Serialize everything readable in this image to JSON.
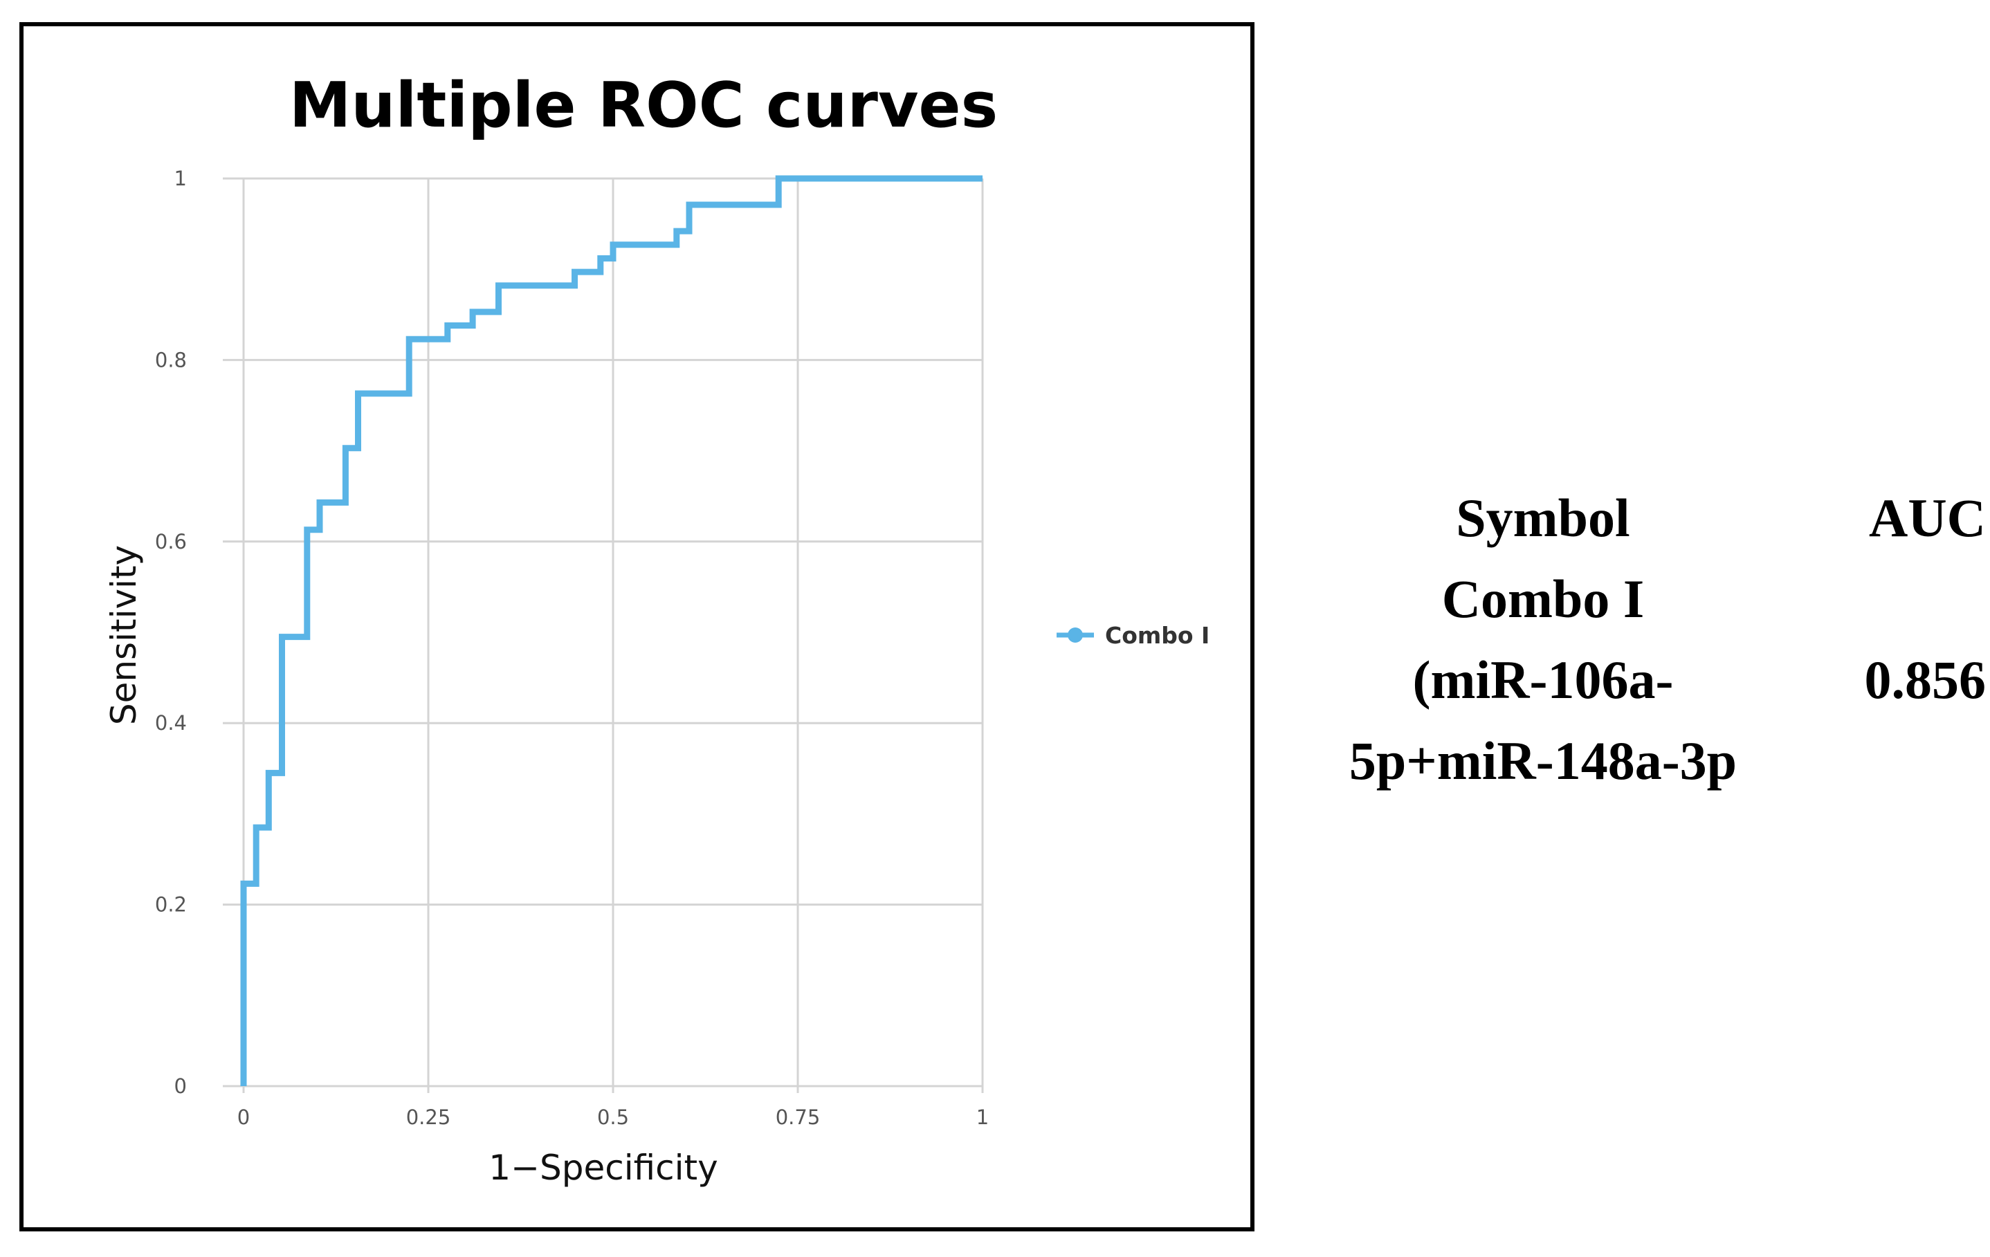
{
  "chart_data": {
    "type": "line",
    "title": "Multiple ROC curves",
    "xlabel": "1−Specificity",
    "ylabel": "Sensitivity",
    "xlim": [
      0,
      1
    ],
    "ylim": [
      0,
      1
    ],
    "grid": true,
    "legend_position": "right",
    "x_ticks": [
      0,
      0.25,
      0.5,
      0.75,
      1
    ],
    "x_tick_labels": [
      "0",
      "0.25",
      "0.5",
      "0.75",
      "1"
    ],
    "y_ticks": [
      0,
      0.2,
      0.4,
      0.6,
      0.8,
      1
    ],
    "y_tick_labels": [
      "0",
      "0.2",
      "0.4",
      "0.6",
      "0.8",
      "1"
    ],
    "series": [
      {
        "name": "Combo I",
        "color": "#5ab4e6",
        "step": true,
        "x": [
          0,
          0,
          0.017,
          0.017,
          0.034,
          0.034,
          0.052,
          0.052,
          0.086,
          0.086,
          0.103,
          0.103,
          0.138,
          0.138,
          0.155,
          0.155,
          0.224,
          0.224,
          0.276,
          0.276,
          0.31,
          0.31,
          0.345,
          0.345,
          0.448,
          0.448,
          0.483,
          0.483,
          0.5,
          0.5,
          0.586,
          0.586,
          0.603,
          0.603,
          0.724,
          0.724,
          1
        ],
        "y": [
          0,
          0.223,
          0.223,
          0.285,
          0.285,
          0.345,
          0.345,
          0.495,
          0.495,
          0.613,
          0.613,
          0.643,
          0.643,
          0.703,
          0.703,
          0.763,
          0.763,
          0.823,
          0.823,
          0.838,
          0.838,
          0.853,
          0.853,
          0.882,
          0.882,
          0.897,
          0.897,
          0.912,
          0.912,
          0.927,
          0.927,
          0.942,
          0.942,
          0.971,
          0.971,
          1,
          1
        ]
      }
    ]
  },
  "legend": {
    "items": [
      {
        "label": "Combo I",
        "color": "#5ab4e6"
      }
    ]
  },
  "auc_table": {
    "symbol_header": "Symbol",
    "auc_header": "AUC",
    "symbol_lines": [
      "Combo I",
      "(miR-106a-",
      "5p+miR-148a-3p"
    ],
    "auc_value": "0.856"
  }
}
